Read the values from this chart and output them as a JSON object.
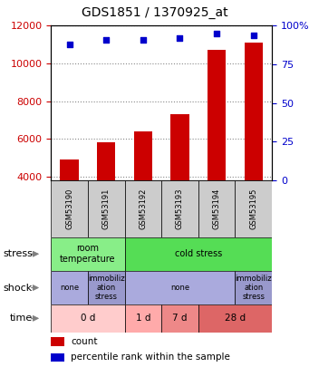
{
  "title": "GDS1851 / 1370925_at",
  "samples": [
    "GSM53190",
    "GSM53191",
    "GSM53192",
    "GSM53193",
    "GSM53194",
    "GSM53195"
  ],
  "counts": [
    4900,
    5800,
    6400,
    7300,
    10700,
    11100
  ],
  "percentiles": [
    88,
    91,
    91,
    92,
    95,
    94
  ],
  "ylim_left": [
    3800,
    12000
  ],
  "ylim_right": [
    0,
    100
  ],
  "yticks_left": [
    4000,
    6000,
    8000,
    10000,
    12000
  ],
  "yticks_right": [
    0,
    25,
    50,
    75,
    100
  ],
  "bar_color": "#cc0000",
  "dot_color": "#0000cc",
  "bar_width": 0.5,
  "stress_groups": [
    {
      "label": "room\ntemperature",
      "start": 0,
      "end": 2,
      "color": "#88ee88"
    },
    {
      "label": "cold stress",
      "start": 2,
      "end": 6,
      "color": "#55dd55"
    }
  ],
  "shock_groups": [
    {
      "label": "none",
      "start": 0,
      "end": 1,
      "color": "#aaaadd"
    },
    {
      "label": "immobiliz\nation\nstress",
      "start": 1,
      "end": 2,
      "color": "#9999cc"
    },
    {
      "label": "none",
      "start": 2,
      "end": 5,
      "color": "#aaaadd"
    },
    {
      "label": "immobiliz\nation\nstress",
      "start": 5,
      "end": 6,
      "color": "#9999cc"
    }
  ],
  "time_groups": [
    {
      "label": "0 d",
      "start": 0,
      "end": 2,
      "color": "#ffcccc"
    },
    {
      "label": "1 d",
      "start": 2,
      "end": 3,
      "color": "#ffaaaa"
    },
    {
      "label": "7 d",
      "start": 3,
      "end": 4,
      "color": "#ee8888"
    },
    {
      "label": "28 d",
      "start": 4,
      "end": 6,
      "color": "#dd6666"
    }
  ],
  "sample_box_color": "#cccccc",
  "axis_color_left": "#cc0000",
  "axis_color_right": "#0000cc",
  "row_labels": [
    "stress",
    "shock",
    "time"
  ],
  "legend_count_label": "count",
  "legend_pct_label": "percentile rank within the sample",
  "chart_bg": "#ffffff",
  "grid_color": "#888888"
}
